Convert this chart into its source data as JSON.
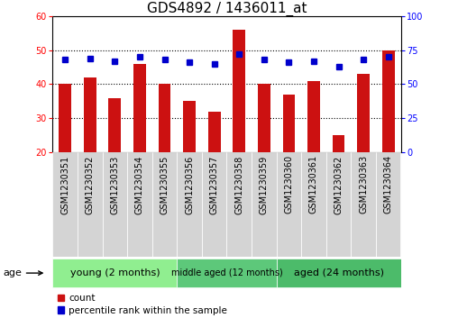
{
  "title": "GDS4892 / 1436011_at",
  "samples": [
    "GSM1230351",
    "GSM1230352",
    "GSM1230353",
    "GSM1230354",
    "GSM1230355",
    "GSM1230356",
    "GSM1230357",
    "GSM1230358",
    "GSM1230359",
    "GSM1230360",
    "GSM1230361",
    "GSM1230362",
    "GSM1230363",
    "GSM1230364"
  ],
  "counts": [
    40,
    42,
    36,
    46,
    40,
    35,
    32,
    56,
    40,
    37,
    41,
    25,
    43,
    50
  ],
  "percentile_ranks": [
    68,
    69,
    67,
    70,
    68,
    66,
    65,
    72,
    68,
    66,
    67,
    63,
    68,
    70
  ],
  "groups": [
    {
      "label": "young (2 months)",
      "start": 0,
      "end": 5,
      "color": "#90EE90"
    },
    {
      "label": "middle aged (12 months)",
      "start": 5,
      "end": 9,
      "color": "#5DC87A"
    },
    {
      "label": "aged (24 months)",
      "start": 9,
      "end": 14,
      "color": "#4CBB6A"
    }
  ],
  "left_ylim": [
    20,
    60
  ],
  "right_ylim": [
    0,
    100
  ],
  "left_yticks": [
    20,
    30,
    40,
    50,
    60
  ],
  "right_yticks": [
    0,
    25,
    50,
    75,
    100
  ],
  "bar_color": "#CC1111",
  "dot_color": "#0000CC",
  "bar_bottom": 20,
  "title_fontsize": 11,
  "tick_fontsize": 7,
  "group_colors": [
    "#90EE90",
    "#5DC87A",
    "#4CBB6A"
  ]
}
